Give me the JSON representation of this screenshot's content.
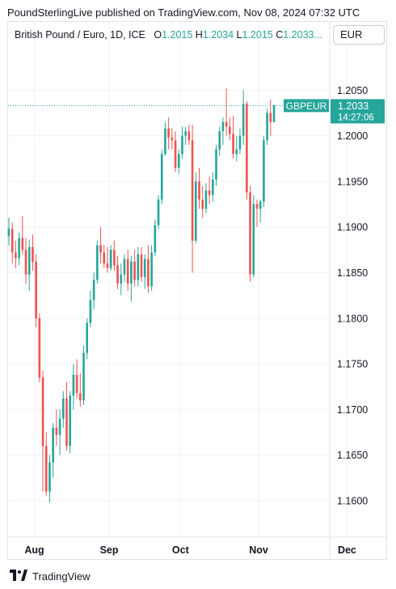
{
  "header": {
    "attribution": "PoundSterlingLive published on TradingView.com, Nov 08, 2024 07:32 UTC"
  },
  "legend": {
    "symbol": "British Pound / Euro, 1D, ICE",
    "o_label": "O",
    "o_value": "1.2015",
    "h_label": "H",
    "h_value": "1.2034",
    "l_label": "L",
    "l_value": "1.2015",
    "c_label": "C",
    "c_value": "1.2033..."
  },
  "currency": "EUR",
  "footer": {
    "brand": "TradingView"
  },
  "colors": {
    "up": "#26a69a",
    "down": "#ef5350",
    "grid": "#f0f3fa",
    "text": "#131722"
  },
  "chart_data": {
    "type": "candlestick",
    "ylim": [
      1.156,
      1.21
    ],
    "y_ticks": [
      "1.2050",
      "1.2000",
      "1.1950",
      "1.1900",
      "1.1850",
      "1.1800",
      "1.1750",
      "1.1700",
      "1.1650",
      "1.1600"
    ],
    "x_ticks": [
      "Aug",
      "Sep",
      "Oct",
      "Nov",
      "Dec"
    ],
    "last_price": {
      "label": "GBPEUR",
      "value": "1.2033",
      "countdown": "14:27:06"
    },
    "candles": [
      {
        "d": "Jul 22",
        "o": 1.189,
        "h": 1.191,
        "l": 1.188,
        "c": 1.1898
      },
      {
        "d": "Jul 23",
        "o": 1.1898,
        "h": 1.1905,
        "l": 1.186,
        "c": 1.1872
      },
      {
        "d": "Jul 24",
        "o": 1.1872,
        "h": 1.1885,
        "l": 1.1855,
        "c": 1.1866
      },
      {
        "d": "Jul 25",
        "o": 1.1866,
        "h": 1.1894,
        "l": 1.1858,
        "c": 1.1888
      },
      {
        "d": "Jul 26",
        "o": 1.1888,
        "h": 1.1912,
        "l": 1.187,
        "c": 1.1875
      },
      {
        "d": "Jul 29",
        "o": 1.1875,
        "h": 1.1888,
        "l": 1.1838,
        "c": 1.1848
      },
      {
        "d": "Jul 30",
        "o": 1.1848,
        "h": 1.1886,
        "l": 1.183,
        "c": 1.1878
      },
      {
        "d": "Jul 31",
        "o": 1.1878,
        "h": 1.1892,
        "l": 1.1852,
        "c": 1.1862
      },
      {
        "d": "Aug 1",
        "o": 1.1862,
        "h": 1.187,
        "l": 1.179,
        "c": 1.18
      },
      {
        "d": "Aug 2",
        "o": 1.18,
        "h": 1.1805,
        "l": 1.173,
        "c": 1.1735
      },
      {
        "d": "Aug 5",
        "o": 1.1735,
        "h": 1.1742,
        "l": 1.161,
        "c": 1.166
      },
      {
        "d": "Aug 6",
        "o": 1.166,
        "h": 1.1675,
        "l": 1.1605,
        "c": 1.161
      },
      {
        "d": "Aug 7",
        "o": 1.161,
        "h": 1.165,
        "l": 1.1598,
        "c": 1.1642
      },
      {
        "d": "Aug 8",
        "o": 1.1642,
        "h": 1.1685,
        "l": 1.1625,
        "c": 1.168
      },
      {
        "d": "Aug 9",
        "o": 1.168,
        "h": 1.17,
        "l": 1.166,
        "c": 1.1672
      },
      {
        "d": "Aug 12",
        "o": 1.1672,
        "h": 1.17,
        "l": 1.165,
        "c": 1.169
      },
      {
        "d": "Aug 13",
        "o": 1.169,
        "h": 1.172,
        "l": 1.168,
        "c": 1.1712
      },
      {
        "d": "Aug 14",
        "o": 1.1712,
        "h": 1.173,
        "l": 1.1655,
        "c": 1.166
      },
      {
        "d": "Aug 15",
        "o": 1.166,
        "h": 1.172,
        "l": 1.1652,
        "c": 1.1715
      },
      {
        "d": "Aug 16",
        "o": 1.1715,
        "h": 1.175,
        "l": 1.17,
        "c": 1.1738
      },
      {
        "d": "Aug 19",
        "o": 1.1738,
        "h": 1.1755,
        "l": 1.1712,
        "c": 1.1718
      },
      {
        "d": "Aug 20",
        "o": 1.1718,
        "h": 1.174,
        "l": 1.1703,
        "c": 1.171
      },
      {
        "d": "Aug 21",
        "o": 1.171,
        "h": 1.177,
        "l": 1.1705,
        "c": 1.1762
      },
      {
        "d": "Aug 22",
        "o": 1.1762,
        "h": 1.18,
        "l": 1.1755,
        "c": 1.1795
      },
      {
        "d": "Aug 23",
        "o": 1.1795,
        "h": 1.183,
        "l": 1.179,
        "c": 1.182
      },
      {
        "d": "Aug 26",
        "o": 1.182,
        "h": 1.185,
        "l": 1.181,
        "c": 1.1842
      },
      {
        "d": "Aug 27",
        "o": 1.1842,
        "h": 1.1885,
        "l": 1.1838,
        "c": 1.188
      },
      {
        "d": "Aug 28",
        "o": 1.188,
        "h": 1.19,
        "l": 1.186,
        "c": 1.1872
      },
      {
        "d": "Aug 29",
        "o": 1.1872,
        "h": 1.188,
        "l": 1.1855,
        "c": 1.186
      },
      {
        "d": "Aug 30",
        "o": 1.186,
        "h": 1.1878,
        "l": 1.185,
        "c": 1.1855
      },
      {
        "d": "Sep 2",
        "o": 1.1855,
        "h": 1.188,
        "l": 1.1852,
        "c": 1.1875
      },
      {
        "d": "Sep 3",
        "o": 1.1875,
        "h": 1.1885,
        "l": 1.1852,
        "c": 1.1858
      },
      {
        "d": "Sep 4",
        "o": 1.1858,
        "h": 1.1868,
        "l": 1.1832,
        "c": 1.1838
      },
      {
        "d": "Sep 5",
        "o": 1.1838,
        "h": 1.186,
        "l": 1.1825,
        "c": 1.1848
      },
      {
        "d": "Sep 6",
        "o": 1.1848,
        "h": 1.187,
        "l": 1.184,
        "c": 1.1865
      },
      {
        "d": "Sep 9",
        "o": 1.1865,
        "h": 1.1875,
        "l": 1.183,
        "c": 1.1838
      },
      {
        "d": "Sep 10",
        "o": 1.1838,
        "h": 1.1868,
        "l": 1.1818,
        "c": 1.1862
      },
      {
        "d": "Sep 11",
        "o": 1.1862,
        "h": 1.1875,
        "l": 1.1835,
        "c": 1.1842
      },
      {
        "d": "Sep 12",
        "o": 1.1842,
        "h": 1.1878,
        "l": 1.1835,
        "c": 1.187
      },
      {
        "d": "Sep 13",
        "o": 1.187,
        "h": 1.1878,
        "l": 1.184,
        "c": 1.1845
      },
      {
        "d": "Sep 16",
        "o": 1.1845,
        "h": 1.187,
        "l": 1.1832,
        "c": 1.1865
      },
      {
        "d": "Sep 17",
        "o": 1.1865,
        "h": 1.188,
        "l": 1.1828,
        "c": 1.1835
      },
      {
        "d": "Sep 18",
        "o": 1.1835,
        "h": 1.188,
        "l": 1.183,
        "c": 1.1872
      },
      {
        "d": "Sep 19",
        "o": 1.1872,
        "h": 1.1908,
        "l": 1.1868,
        "c": 1.1902
      },
      {
        "d": "Sep 20",
        "o": 1.1902,
        "h": 1.1935,
        "l": 1.1898,
        "c": 1.193
      },
      {
        "d": "Sep 23",
        "o": 1.193,
        "h": 1.1985,
        "l": 1.1925,
        "c": 1.198
      },
      {
        "d": "Sep 24",
        "o": 1.198,
        "h": 1.2015,
        "l": 1.1978,
        "c": 1.2008
      },
      {
        "d": "Sep 25",
        "o": 1.2008,
        "h": 1.202,
        "l": 1.1985,
        "c": 1.1998
      },
      {
        "d": "Sep 26",
        "o": 1.1998,
        "h": 1.2008,
        "l": 1.1985,
        "c": 1.1995
      },
      {
        "d": "Sep 27",
        "o": 1.1995,
        "h": 1.2005,
        "l": 1.196,
        "c": 1.1965
      },
      {
        "d": "Sep 30",
        "o": 1.1965,
        "h": 1.1985,
        "l": 1.1958,
        "c": 1.198
      },
      {
        "d": "Oct 1",
        "o": 1.198,
        "h": 1.201,
        "l": 1.1975,
        "c": 1.2
      },
      {
        "d": "Oct 2",
        "o": 1.2,
        "h": 1.201,
        "l": 1.199,
        "c": 1.2005
      },
      {
        "d": "Oct 3",
        "o": 1.2005,
        "h": 1.2012,
        "l": 1.199,
        "c": 1.1995
      },
      {
        "d": "Oct 4",
        "o": 1.1995,
        "h": 1.2012,
        "l": 1.185,
        "c": 1.1885
      },
      {
        "d": "Oct 7",
        "o": 1.1885,
        "h": 1.196,
        "l": 1.1882,
        "c": 1.195
      },
      {
        "d": "Oct 8",
        "o": 1.195,
        "h": 1.1965,
        "l": 1.192,
        "c": 1.193
      },
      {
        "d": "Oct 9",
        "o": 1.193,
        "h": 1.1945,
        "l": 1.191,
        "c": 1.192
      },
      {
        "d": "Oct 10",
        "o": 1.192,
        "h": 1.1948,
        "l": 1.1915,
        "c": 1.194
      },
      {
        "d": "Oct 11",
        "o": 1.194,
        "h": 1.1955,
        "l": 1.1925,
        "c": 1.1935
      },
      {
        "d": "Oct 14",
        "o": 1.1935,
        "h": 1.196,
        "l": 1.1928,
        "c": 1.1952
      },
      {
        "d": "Oct 15",
        "o": 1.1952,
        "h": 1.199,
        "l": 1.1945,
        "c": 1.1985
      },
      {
        "d": "Oct 16",
        "o": 1.1985,
        "h": 1.201,
        "l": 1.1978,
        "c": 1.2005
      },
      {
        "d": "Oct 17",
        "o": 1.2005,
        "h": 1.202,
        "l": 1.199,
        "c": 1.2015
      },
      {
        "d": "Oct 18",
        "o": 1.2015,
        "h": 1.2052,
        "l": 1.2,
        "c": 1.201
      },
      {
        "d": "Oct 21",
        "o": 1.201,
        "h": 1.202,
        "l": 1.1995,
        "c": 1.2002
      },
      {
        "d": "Oct 22",
        "o": 1.2002,
        "h": 1.2022,
        "l": 1.1975,
        "c": 1.198
      },
      {
        "d": "Oct 23",
        "o": 1.198,
        "h": 1.2,
        "l": 1.1972,
        "c": 1.1985
      },
      {
        "d": "Oct 24",
        "o": 1.1985,
        "h": 1.2008,
        "l": 1.198,
        "c": 1.2
      },
      {
        "d": "Oct 25",
        "o": 1.2,
        "h": 1.205,
        "l": 1.199,
        "c": 1.2035
      },
      {
        "d": "Oct 28",
        "o": 1.2035,
        "h": 1.2038,
        "l": 1.193,
        "c": 1.1938
      },
      {
        "d": "Oct 29",
        "o": 1.1938,
        "h": 1.1945,
        "l": 1.184,
        "c": 1.1848
      },
      {
        "d": "Oct 30",
        "o": 1.1848,
        "h": 1.1935,
        "l": 1.1845,
        "c": 1.1925
      },
      {
        "d": "Oct 31",
        "o": 1.1925,
        "h": 1.193,
        "l": 1.19,
        "c": 1.192
      },
      {
        "d": "Nov 1",
        "o": 1.192,
        "h": 1.193,
        "l": 1.1905,
        "c": 1.1928
      },
      {
        "d": "Nov 4",
        "o": 1.1928,
        "h": 1.2,
        "l": 1.1922,
        "c": 1.1995
      },
      {
        "d": "Nov 5",
        "o": 1.1995,
        "h": 1.203,
        "l": 1.199,
        "c": 1.2025
      },
      {
        "d": "Nov 6",
        "o": 1.2025,
        "h": 1.204,
        "l": 1.2,
        "c": 1.2015
      },
      {
        "d": "Nov 7",
        "o": 1.2015,
        "h": 1.2034,
        "l": 1.2015,
        "c": 1.2033
      }
    ]
  }
}
